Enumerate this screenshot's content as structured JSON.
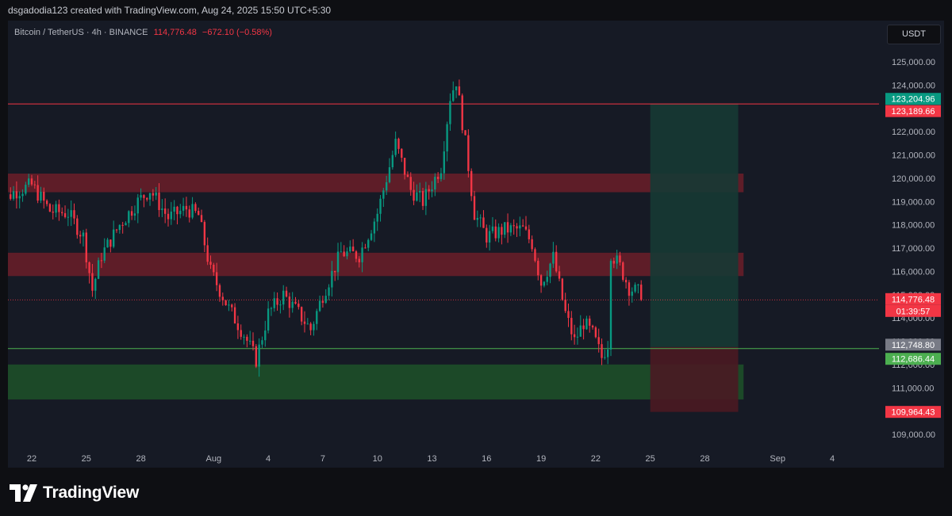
{
  "header": {
    "attribution": "dsgadodia123 created with TradingView.com, Aug 24, 2025 15:50 UTC+5:30"
  },
  "legend": {
    "symbol": "Bitcoin / TetherUS · 4h · BINANCE",
    "price": "114,776.48",
    "change": "−672.10 (−0.58%)"
  },
  "currency_button": "USDT",
  "footer": {
    "brand": "TradingView"
  },
  "colors": {
    "up": "#089981",
    "down": "#f23645",
    "background": "#161a25",
    "page": "#0e0f13",
    "resistance_zone": "#7a1e2a",
    "support_zone": "#1e5b2a",
    "target_zone": "#163a34"
  },
  "chart_data": {
    "type": "candlestick",
    "title": "Bitcoin / TetherUS · 4h · BINANCE",
    "y_axis": {
      "ylim": [
        108500,
        126000
      ],
      "ticks": [
        109000,
        110000,
        111000,
        112000,
        113000,
        114000,
        115000,
        116000,
        117000,
        118000,
        119000,
        120000,
        121000,
        122000,
        123000,
        124000,
        125000
      ],
      "position": "right"
    },
    "x_axis": {
      "ticks": [
        {
          "label": "22",
          "date": "2025-07-22"
        },
        {
          "label": "25",
          "date": "2025-07-25"
        },
        {
          "label": "28",
          "date": "2025-07-28"
        },
        {
          "label": "Aug",
          "date": "2025-08-01"
        },
        {
          "label": "4",
          "date": "2025-08-04"
        },
        {
          "label": "7",
          "date": "2025-08-07"
        },
        {
          "label": "10",
          "date": "2025-08-10"
        },
        {
          "label": "13",
          "date": "2025-08-13"
        },
        {
          "label": "16",
          "date": "2025-08-16"
        },
        {
          "label": "19",
          "date": "2025-08-19"
        },
        {
          "label": "22",
          "date": "2025-08-22"
        },
        {
          "label": "25",
          "date": "2025-08-25"
        },
        {
          "label": "28",
          "date": "2025-08-28"
        },
        {
          "label": "Sep",
          "date": "2025-09-01"
        },
        {
          "label": "4",
          "date": "2025-09-04"
        }
      ]
    },
    "price_points": [
      {
        "date": "2025-07-20 00:00",
        "price": 118800
      },
      {
        "date": "2025-07-21 00:00",
        "price": 119400
      },
      {
        "date": "2025-07-22 00:00",
        "price": 119700
      },
      {
        "date": "2025-07-23 00:00",
        "price": 118600
      },
      {
        "date": "2025-07-24 00:00",
        "price": 118500
      },
      {
        "date": "2025-07-24 20:00",
        "price": 117500
      },
      {
        "date": "2025-07-25 08:00",
        "price": 115200
      },
      {
        "date": "2025-07-25 20:00",
        "price": 116700
      },
      {
        "date": "2025-07-26 20:00",
        "price": 118000
      },
      {
        "date": "2025-07-27 20:00",
        "price": 119000
      },
      {
        "date": "2025-07-28 12:00",
        "price": 119500
      },
      {
        "date": "2025-07-29 12:00",
        "price": 118300
      },
      {
        "date": "2025-07-30 12:00",
        "price": 118700
      },
      {
        "date": "2025-07-31 04:00",
        "price": 118400
      },
      {
        "date": "2025-07-31 20:00",
        "price": 116000
      },
      {
        "date": "2025-08-01 20:00",
        "price": 114400
      },
      {
        "date": "2025-08-02 16:00",
        "price": 113300
      },
      {
        "date": "2025-08-03 08:00",
        "price": 112200
      },
      {
        "date": "2025-08-04 00:00",
        "price": 114200
      },
      {
        "date": "2025-08-04 20:00",
        "price": 115000
      },
      {
        "date": "2025-08-05 16:00",
        "price": 114200
      },
      {
        "date": "2025-08-06 08:00",
        "price": 113500
      },
      {
        "date": "2025-08-07 00:00",
        "price": 115000
      },
      {
        "date": "2025-08-08 00:00",
        "price": 116800
      },
      {
        "date": "2025-08-09 00:00",
        "price": 116700
      },
      {
        "date": "2025-08-10 00:00",
        "price": 118500
      },
      {
        "date": "2025-08-11 00:00",
        "price": 121500
      },
      {
        "date": "2025-08-11 20:00",
        "price": 119500
      },
      {
        "date": "2025-08-12 12:00",
        "price": 119000
      },
      {
        "date": "2025-08-13 12:00",
        "price": 120500
      },
      {
        "date": "2025-08-14 00:00",
        "price": 123500
      },
      {
        "date": "2025-08-14 08:00",
        "price": 124200
      },
      {
        "date": "2025-08-14 20:00",
        "price": 121500
      },
      {
        "date": "2025-08-15 08:00",
        "price": 118500
      },
      {
        "date": "2025-08-16 00:00",
        "price": 117500
      },
      {
        "date": "2025-08-17 00:00",
        "price": 117800
      },
      {
        "date": "2025-08-18 00:00",
        "price": 117800
      },
      {
        "date": "2025-08-18 12:00",
        "price": 117200
      },
      {
        "date": "2025-08-19 00:00",
        "price": 115500
      },
      {
        "date": "2025-08-19 16:00",
        "price": 116600
      },
      {
        "date": "2025-08-20 08:00",
        "price": 114200
      },
      {
        "date": "2025-08-20 20:00",
        "price": 113000
      },
      {
        "date": "2025-08-21 08:00",
        "price": 113800
      },
      {
        "date": "2025-08-21 20:00",
        "price": 113300
      },
      {
        "date": "2025-08-22 08:00",
        "price": 112300
      },
      {
        "date": "2025-08-22 16:00",
        "price": 112900
      },
      {
        "date": "2025-08-22 20:00",
        "price": 116800
      },
      {
        "date": "2025-08-23 08:00",
        "price": 116200
      },
      {
        "date": "2025-08-23 20:00",
        "price": 115300
      },
      {
        "date": "2025-08-24 08:00",
        "price": 115100
      },
      {
        "date": "2025-08-24 12:00",
        "price": 114776.48
      }
    ],
    "zones": [
      {
        "name": "upper-resistance-zone",
        "from": 119400,
        "to": 120200,
        "start": "2025-07-20",
        "end": "2025-08-31",
        "color": "#7a1e2a"
      },
      {
        "name": "mid-resistance-zone",
        "from": 115800,
        "to": 116800,
        "start": "2025-07-20",
        "end": "2025-08-31",
        "color": "#7a1e2a"
      },
      {
        "name": "support-zone",
        "from": 110500,
        "to": 112000,
        "start": "2025-07-20",
        "end": "2025-08-31",
        "color": "#1e5b2a"
      }
    ],
    "horizontal_lines": [
      {
        "name": "target-line",
        "price": 123189.66,
        "color": "#f23645"
      },
      {
        "name": "entry-line",
        "price": 112686.44,
        "color": "#4caf50"
      },
      {
        "name": "current-price-line",
        "price": 114776.48,
        "color": "#f23645",
        "dotted": true
      }
    ],
    "position_tool": {
      "start": "2025-08-25 00:00",
      "end": "2025-08-29 20:00",
      "entry": 112748.8,
      "target": 123204.96,
      "stop": 109964.43,
      "profit_color": "#163a34",
      "loss_color": "#4a1a22"
    },
    "price_labels": [
      {
        "name": "target-label",
        "text": "123,204.96",
        "price": 123204.96,
        "color": "#089981"
      },
      {
        "name": "upper-line-label",
        "text": "123,189.66",
        "price": 123189.66,
        "color": "#f23645"
      },
      {
        "name": "last-price-label",
        "text": "114,776.48",
        "price": 114776.48,
        "color": "#f23645"
      },
      {
        "name": "countdown-label",
        "text": "01:39:57",
        "price": 114776.48,
        "color": "#f23645"
      },
      {
        "name": "entry-label",
        "text": "112,748.80",
        "price": 112748.8,
        "color": "#787b86"
      },
      {
        "name": "support-line-label",
        "text": "112,686.44",
        "price": 112686.44,
        "color": "#4caf50"
      },
      {
        "name": "stop-label",
        "text": "109,964.43",
        "price": 109964.43,
        "color": "#f23645"
      }
    ]
  }
}
